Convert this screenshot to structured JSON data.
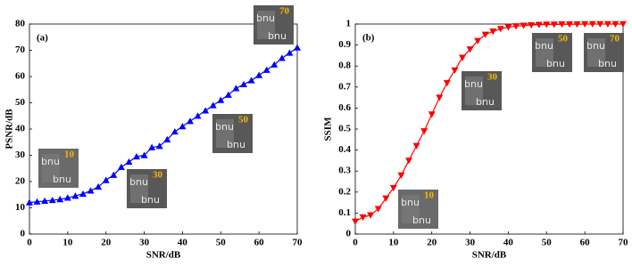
{
  "chart_data": [
    {
      "type": "line",
      "title": "(a)",
      "xlabel": "SNR/dB",
      "ylabel": "PSNR/dB",
      "x": [
        0,
        2,
        4,
        6,
        8,
        10,
        12,
        14,
        16,
        18,
        20,
        22,
        24,
        26,
        28,
        30,
        32,
        34,
        36,
        38,
        40,
        42,
        44,
        46,
        48,
        50,
        52,
        54,
        56,
        58,
        60,
        62,
        64,
        66,
        68,
        70
      ],
      "series": [
        {
          "color": "#0000ff",
          "marker": "^",
          "values": [
            12,
            12.3,
            12.6,
            12.9,
            13.2,
            13.8,
            14.5,
            15.3,
            16.5,
            18,
            20.5,
            22.5,
            25.5,
            27.5,
            29.5,
            30,
            33,
            33.5,
            36,
            39,
            41,
            43,
            45,
            47,
            49,
            51,
            53,
            55.5,
            57,
            58.5,
            60.5,
            62.5,
            64.5,
            67,
            69,
            71
          ]
        }
      ],
      "xlim": [
        0,
        70
      ],
      "xticks": [
        0,
        10,
        20,
        30,
        40,
        50,
        60,
        70
      ],
      "ylim": [
        0,
        80
      ],
      "yticks": [
        0,
        10,
        20,
        30,
        40,
        50,
        60,
        70,
        80
      ],
      "insets": [
        "10",
        "30",
        "50",
        "70"
      ],
      "inset_text": "bnu"
    },
    {
      "type": "line",
      "title": "(b)",
      "xlabel": "SNR/dB",
      "ylabel": "SSIM",
      "x": [
        0,
        2,
        4,
        6,
        8,
        10,
        12,
        14,
        16,
        18,
        20,
        22,
        24,
        26,
        28,
        30,
        32,
        34,
        36,
        38,
        40,
        42,
        44,
        46,
        48,
        50,
        52,
        54,
        56,
        58,
        60,
        62,
        64,
        66,
        68,
        70
      ],
      "series": [
        {
          "color": "#ff0000",
          "marker": "v",
          "values": [
            0.06,
            0.08,
            0.09,
            0.12,
            0.17,
            0.22,
            0.28,
            0.35,
            0.42,
            0.49,
            0.57,
            0.65,
            0.72,
            0.78,
            0.84,
            0.88,
            0.92,
            0.95,
            0.965,
            0.977,
            0.985,
            0.99,
            0.993,
            0.995,
            0.997,
            0.998,
            0.998,
            0.999,
            0.999,
            0.999,
            1,
            1,
            1,
            1,
            1,
            1
          ]
        }
      ],
      "xlim": [
        0,
        70
      ],
      "xticks": [
        0,
        10,
        20,
        30,
        40,
        50,
        60,
        70
      ],
      "ylim": [
        0,
        1
      ],
      "yticks": [
        0,
        0.1,
        0.2,
        0.3,
        0.4,
        0.5,
        0.6,
        0.7,
        0.8,
        0.9,
        1
      ],
      "insets": [
        "10",
        "30",
        "50",
        "70"
      ],
      "inset_text": "bnu"
    }
  ]
}
